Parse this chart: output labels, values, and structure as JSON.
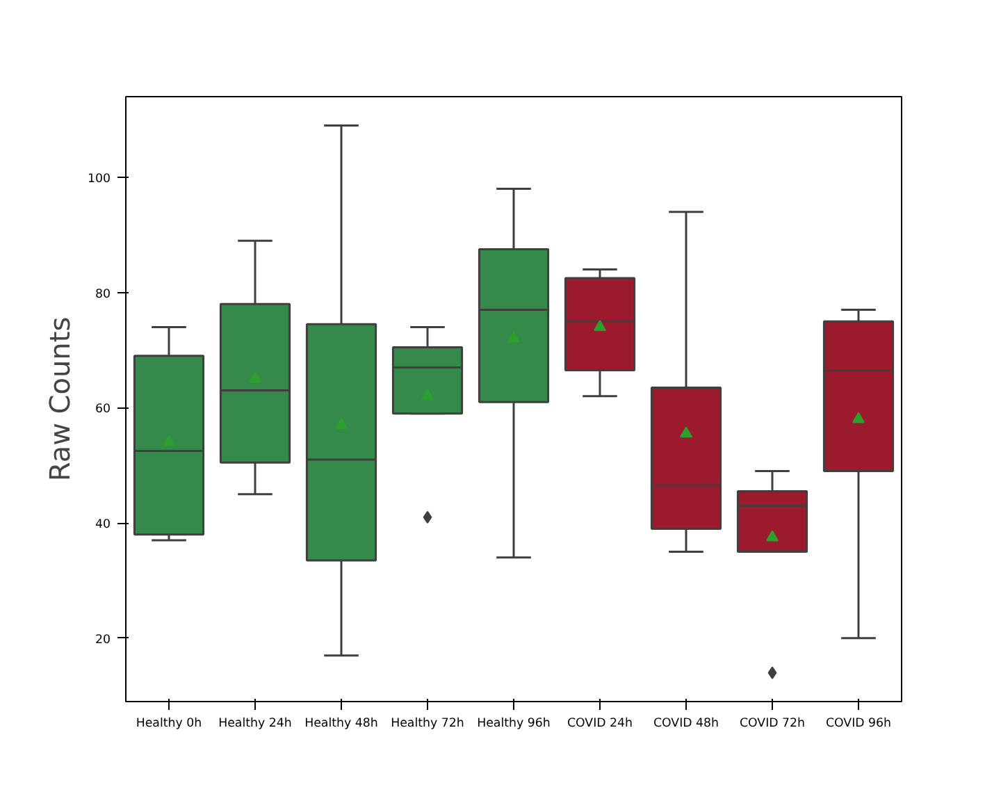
{
  "chart_data": {
    "type": "box",
    "ylabel": "Raw Counts",
    "categories": [
      "Healthy 0h",
      "Healthy 24h",
      "Healthy 48h",
      "Healthy 72h",
      "Healthy 96h",
      "COVID 24h",
      "COVID 48h",
      "COVID 72h",
      "COVID 96h"
    ],
    "colors": [
      "#358a4b",
      "#358a4b",
      "#358a4b",
      "#358a4b",
      "#358a4b",
      "#9c1a2e",
      "#9c1a2e",
      "#9c1a2e",
      "#9c1a2e"
    ],
    "boxes": [
      {
        "low": 37,
        "q1": 38,
        "median": 52.5,
        "q3": 69,
        "high": 74,
        "mean": 54
      },
      {
        "low": 45,
        "q1": 50.5,
        "median": 63,
        "q3": 78,
        "high": 89,
        "mean": 65
      },
      {
        "low": 17,
        "q1": 33.5,
        "median": 51,
        "q3": 74.5,
        "high": 109,
        "mean": 57
      },
      {
        "low": 59,
        "q1": 59,
        "median": 67,
        "q3": 70.5,
        "high": 74,
        "mean": 62,
        "outliers": [
          41
        ]
      },
      {
        "low": 34,
        "q1": 61,
        "median": 77,
        "q3": 87.5,
        "high": 98,
        "mean": 72
      },
      {
        "low": 62,
        "q1": 66.5,
        "median": 75,
        "q3": 82.5,
        "high": 84,
        "mean": 74
      },
      {
        "low": 35,
        "q1": 39,
        "median": 46.5,
        "q3": 63.5,
        "high": 94,
        "mean": 55.5
      },
      {
        "low": 35,
        "q1": 35,
        "median": 43,
        "q3": 45.5,
        "high": 49,
        "mean": 37.5,
        "outliers": [
          14
        ]
      },
      {
        "low": 20,
        "q1": 49,
        "median": 66.5,
        "q3": 75,
        "high": 77,
        "mean": 58
      }
    ],
    "ylim": [
      9,
      114
    ],
    "yticks": [
      20,
      40,
      60,
      80,
      100
    ],
    "grid": false
  }
}
